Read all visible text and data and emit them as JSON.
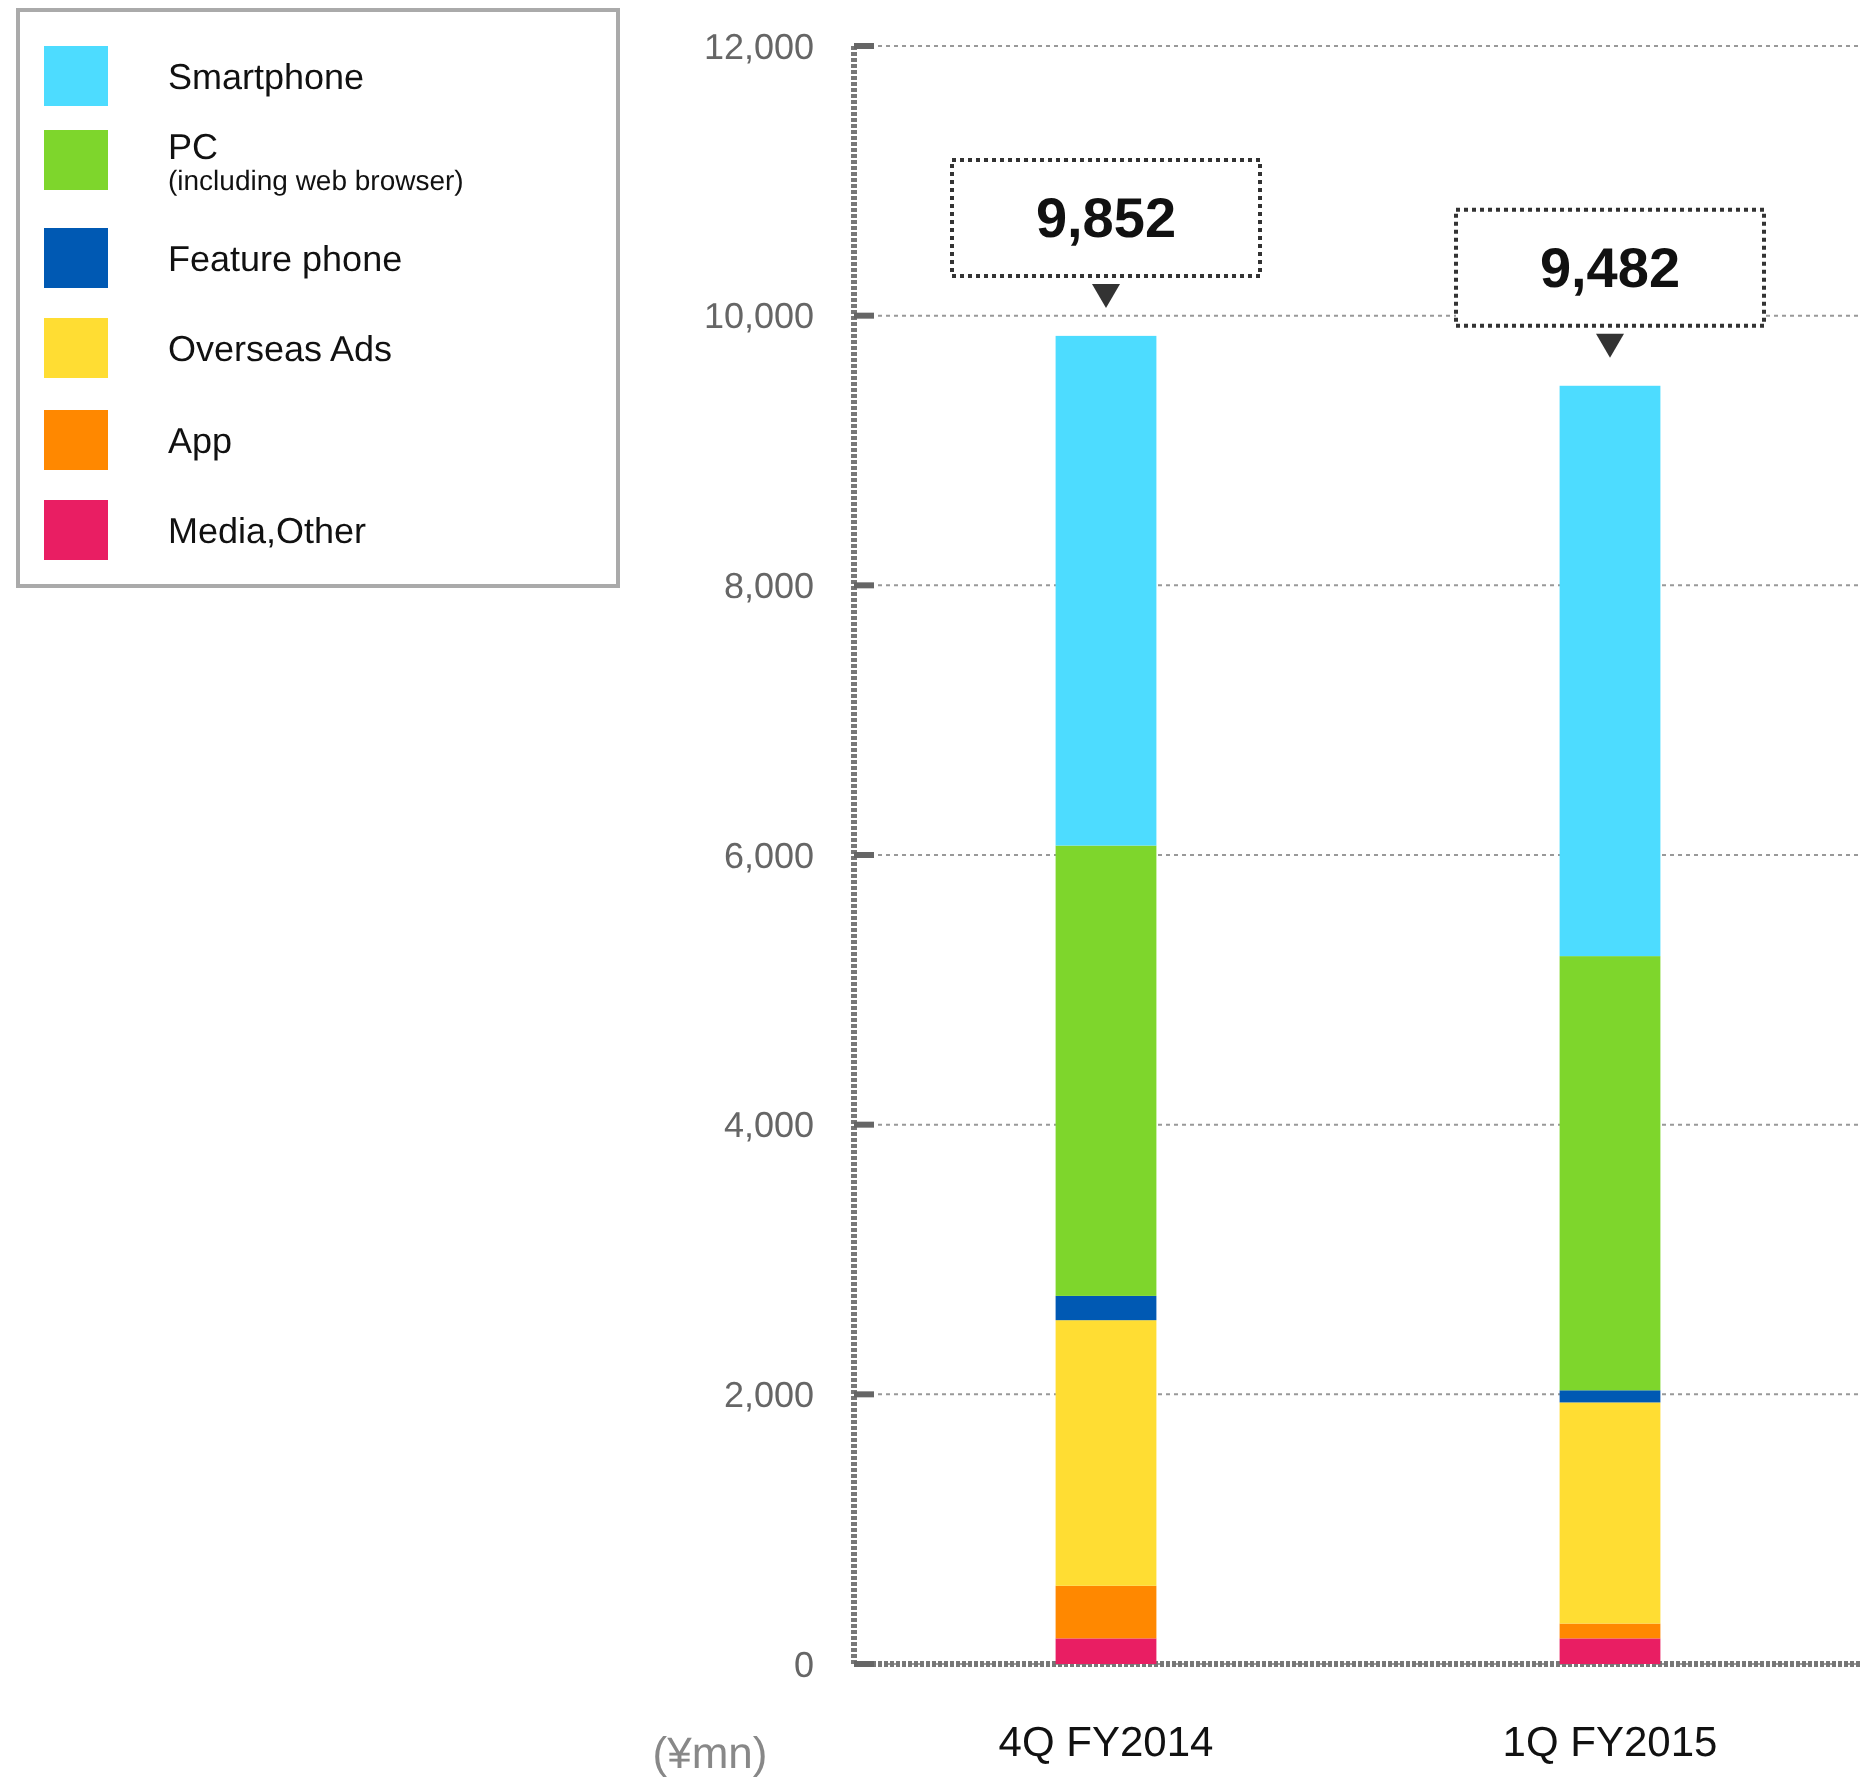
{
  "chart_data": {
    "type": "bar",
    "stacked": true,
    "ylabel": "(¥mn)",
    "categories": [
      "4Q FY2014",
      "1Q FY2015"
    ],
    "series": [
      {
        "name": "Media,Other",
        "color": "#e91e63",
        "values": [
          190,
          190
        ]
      },
      {
        "name": "App",
        "color": "#ff8800",
        "values": [
          390,
          110
        ]
      },
      {
        "name": "Overseas Ads",
        "color": "#ffdd33",
        "values": [
          1970,
          1640
        ]
      },
      {
        "name": "Feature phone",
        "color": "#0059b3",
        "values": [
          180,
          90
        ]
      },
      {
        "name": "PC\n(including web browser)",
        "color": "#7ed62c",
        "values": [
          3340,
          3220
        ]
      },
      {
        "name": "Smartphone",
        "color": "#4ddcff",
        "values": [
          3780,
          4230
        ]
      }
    ],
    "totals": [
      "9,852",
      "9,482"
    ],
    "ylim": [
      0,
      12000
    ],
    "yticks": [
      {
        "value": 0,
        "label": "0"
      },
      {
        "value": 2000,
        "label": "2,000"
      },
      {
        "value": 4000,
        "label": "4,000"
      },
      {
        "value": 6000,
        "label": "6,000"
      },
      {
        "value": 8000,
        "label": "8,000"
      },
      {
        "value": 10000,
        "label": "10,000"
      },
      {
        "value": 12000,
        "label": "12,000"
      }
    ],
    "grid": "y",
    "legend": "top left"
  }
}
